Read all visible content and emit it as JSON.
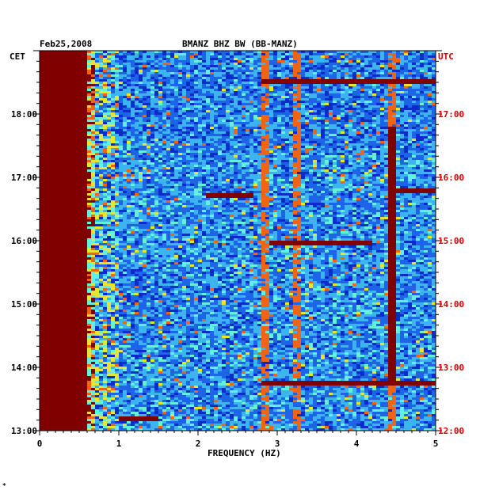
{
  "chart_data": {
    "type": "heatmap",
    "title": "BMANZ BHZ BW (BB-MANZ)",
    "date": "Feb25,2008",
    "left_axis_label": "CET",
    "right_axis_label": "UTC",
    "xlabel": "FREQUENCY (HZ)",
    "xlim": [
      0,
      5
    ],
    "x_ticks": [
      "0",
      "1",
      "2",
      "3",
      "4",
      "5"
    ],
    "ylim_cet_hours": [
      13,
      19
    ],
    "left_ticks": [
      "13:00",
      "14:00",
      "15:00",
      "16:00",
      "17:00",
      "18:00"
    ],
    "right_ticks": [
      "12:00",
      "13:00",
      "14:00",
      "15:00",
      "16:00",
      "17:00"
    ],
    "colormap": [
      "#0a2cc8",
      "#1e64e6",
      "#3cb4f0",
      "#64f0dc",
      "#e6e632",
      "#f06414",
      "#800000"
    ],
    "saturated_band_hz": [
      0,
      0.6
    ],
    "persistent_lines_hz": [
      2.85,
      3.25,
      4.45
    ],
    "noise_bursts": [
      {
        "f0": 1.0,
        "f1": 1.5,
        "t": 13.2
      },
      {
        "f0": 2.8,
        "f1": 5.0,
        "t": 13.75
      },
      {
        "f0": 2.1,
        "f1": 2.7,
        "t": 16.72
      },
      {
        "f0": 4.4,
        "f1": 5.0,
        "t": 16.8
      },
      {
        "f0": 2.8,
        "f1": 5.0,
        "t": 18.5
      },
      {
        "f0": 2.9,
        "f1": 4.2,
        "t": 15.95
      }
    ]
  },
  "footer": {
    "mark": "*"
  }
}
